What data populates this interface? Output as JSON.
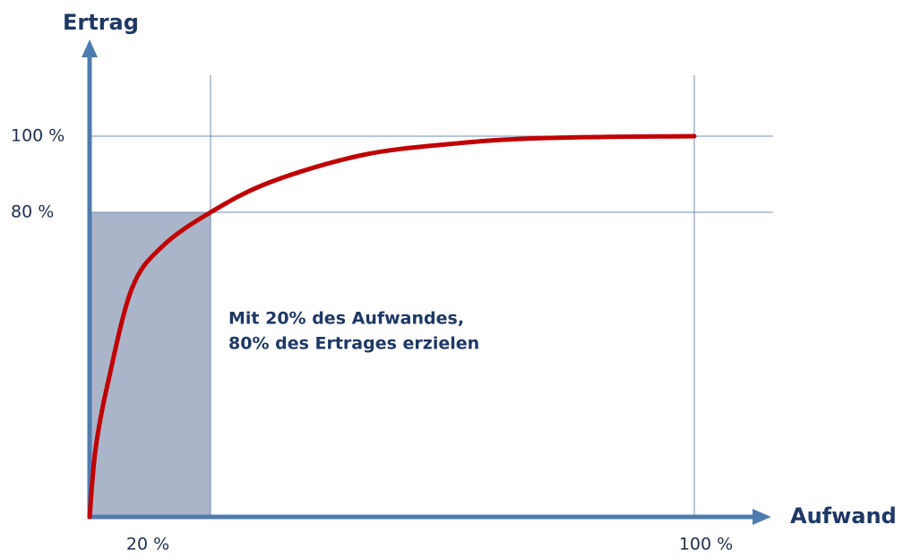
{
  "chart_data": {
    "type": "line",
    "y_label": "Ertrag",
    "x_label": "Aufwand",
    "annotation": [
      "Mit 20% des Aufwandes,",
      "80% des Ertrages erzielen"
    ],
    "x": [
      0,
      1,
      3,
      7,
      12,
      20,
      30,
      45,
      60,
      75,
      100
    ],
    "series": [
      {
        "name": "Ertrag",
        "color": "#c00000",
        "values": [
          0,
          18,
          35,
          60,
          71,
          80,
          88,
          95,
          98,
          99.5,
          100
        ]
      }
    ],
    "xlim": [
      0,
      113
    ],
    "ylim": [
      0,
      116
    ],
    "xticks": [
      {
        "value": 20,
        "label": "20 %"
      },
      {
        "value": 100,
        "label": "100 %"
      }
    ],
    "yticks": [
      {
        "value": 80,
        "label": "80 %"
      },
      {
        "value": 100,
        "label": "100 %"
      }
    ],
    "grid": true
  }
}
